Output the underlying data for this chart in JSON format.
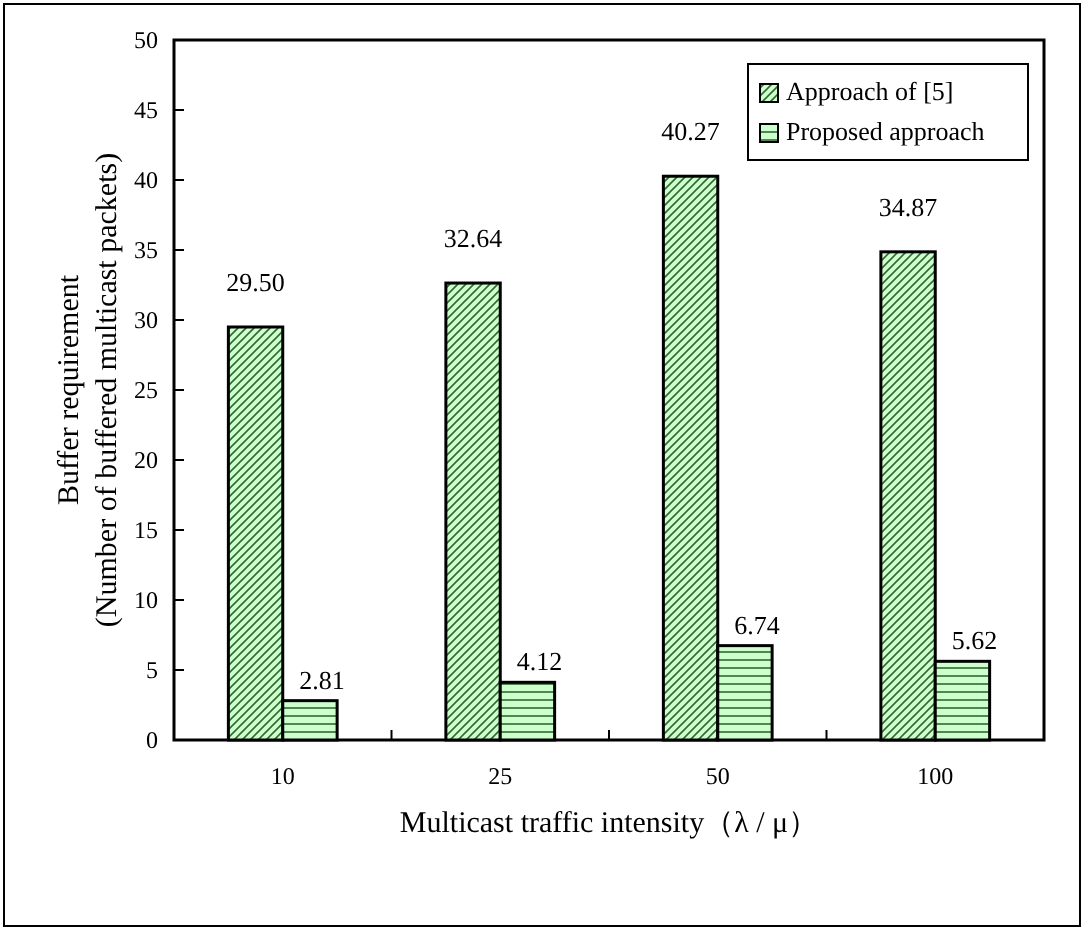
{
  "chart_data": {
    "type": "bar",
    "xlabel": "Multicast traffic intensity（λ / μ）",
    "ylabel": "Buffer requirement\n(Number of buffered multicast packets)",
    "categories": [
      "10",
      "25",
      "50",
      "100"
    ],
    "series": [
      {
        "name": "Approach of [5]",
        "color": "#ccffcc",
        "values": [
          29.5,
          32.64,
          40.27,
          34.87
        ],
        "value_labels": [
          "29.50",
          "32.64",
          "40.27",
          "34.87"
        ]
      },
      {
        "name": "Proposed approach",
        "color": "#ccffcc",
        "values": [
          2.81,
          4.12,
          6.74,
          5.62
        ],
        "value_labels": [
          "2.81",
          "4.12",
          "6.74",
          "5.62"
        ]
      }
    ],
    "ylim": [
      0,
      50
    ],
    "yticks": [
      0,
      5,
      10,
      15,
      20,
      25,
      30,
      35,
      40,
      45,
      50
    ],
    "legend": "top right",
    "grid": false
  }
}
